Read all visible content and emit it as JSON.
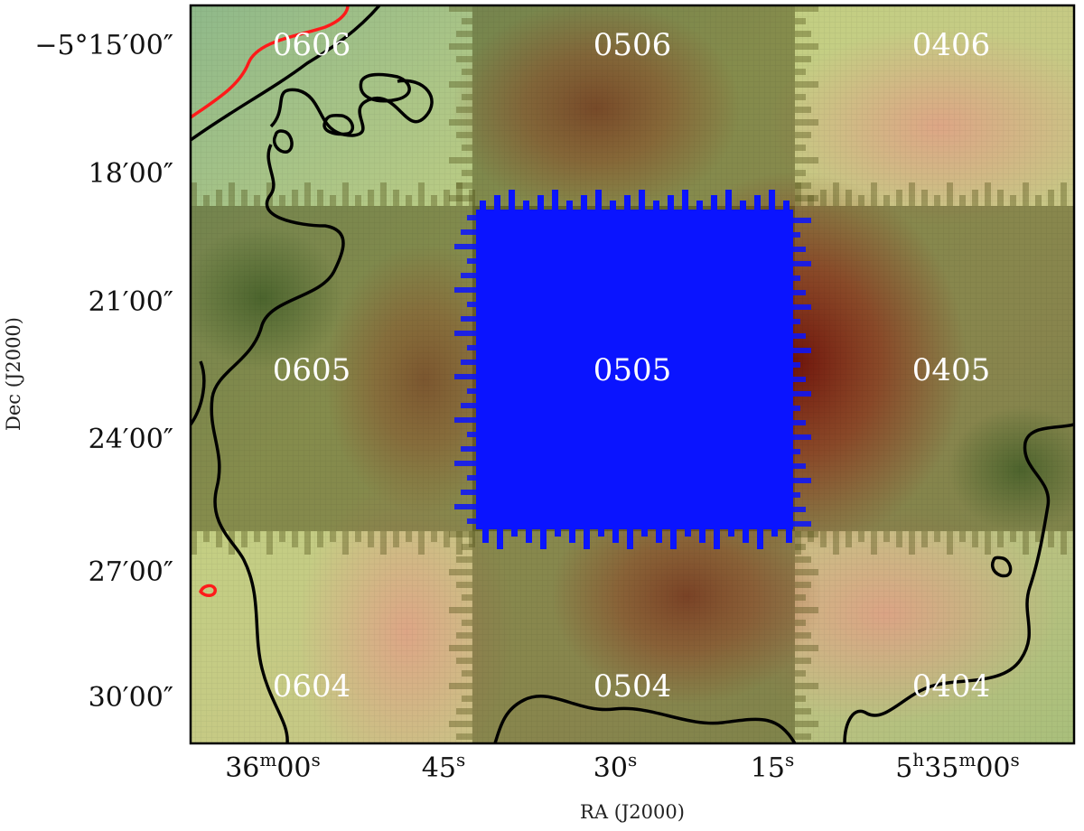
{
  "axes": {
    "x_title": "RA (J2000)",
    "y_title": "Dec (J2000)",
    "x_ticks": [
      {
        "value": "36m00s",
        "parts": [
          [
            "36",
            ""
          ],
          [
            "m",
            "sup"
          ],
          [
            "00",
            ""
          ],
          [
            "s",
            "sup"
          ]
        ]
      },
      {
        "value": "45s",
        "parts": [
          [
            "45",
            ""
          ],
          [
            "s",
            "sup"
          ]
        ]
      },
      {
        "value": "30s",
        "parts": [
          [
            "30",
            ""
          ],
          [
            "s",
            "sup"
          ]
        ]
      },
      {
        "value": "15s",
        "parts": [
          [
            "15",
            ""
          ],
          [
            "s",
            "sup"
          ]
        ]
      },
      {
        "value": "5h35m00s",
        "parts": [
          [
            "5",
            ""
          ],
          [
            "h",
            "sup"
          ],
          [
            "35",
            ""
          ],
          [
            "m",
            "sup"
          ],
          [
            "00",
            ""
          ],
          [
            "s",
            "sup"
          ]
        ]
      }
    ],
    "y_ticks": [
      {
        "value": "−5°15′00″",
        "text": "−5°15′00″"
      },
      {
        "value": "18′00″",
        "text": "18′00″"
      },
      {
        "value": "21′00″",
        "text": "21′00″"
      },
      {
        "value": "24′00″",
        "text": "24′00″"
      },
      {
        "value": "27′00″",
        "text": "27′00″"
      },
      {
        "value": "30′00″",
        "text": "30′00″"
      }
    ]
  },
  "tiles": [
    {
      "label": "0606",
      "col": 0,
      "row": 0
    },
    {
      "label": "0506",
      "col": 1,
      "row": 0
    },
    {
      "label": "0406",
      "col": 2,
      "row": 0
    },
    {
      "label": "0605",
      "col": 0,
      "row": 1
    },
    {
      "label": "0505",
      "col": 1,
      "row": 1,
      "highlighted": true
    },
    {
      "label": "0405",
      "col": 2,
      "row": 1
    },
    {
      "label": "0604",
      "col": 0,
      "row": 2
    },
    {
      "label": "0504",
      "col": 1,
      "row": 2
    },
    {
      "label": "0404",
      "col": 2,
      "row": 2
    }
  ],
  "colors": {
    "highlight_tile": "#0a14ff",
    "contour_black": "#000000",
    "contour_red": "#ff1a1a",
    "background_light": "#b9c77a",
    "background_dark": "#4f5a1e",
    "emission_red": "#8a1a10"
  }
}
